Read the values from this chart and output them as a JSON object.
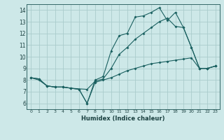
{
  "xlabel": "Humidex (Indice chaleur)",
  "background_color": "#cde8e8",
  "grid_color": "#aacccc",
  "line_color": "#1a6060",
  "xlim": [
    -0.5,
    23.5
  ],
  "ylim": [
    5.5,
    14.5
  ],
  "xticks": [
    0,
    1,
    2,
    3,
    4,
    5,
    6,
    7,
    8,
    9,
    10,
    11,
    12,
    13,
    14,
    15,
    16,
    17,
    18,
    19,
    20,
    21,
    22,
    23
  ],
  "yticks": [
    6,
    7,
    8,
    9,
    10,
    11,
    12,
    13,
    14
  ],
  "line1_x": [
    0,
    1,
    2,
    3,
    4,
    5,
    6,
    7,
    8,
    9,
    10,
    11,
    12,
    13,
    14,
    15,
    16,
    17,
    18,
    19,
    20,
    21,
    22,
    23
  ],
  "line1_y": [
    8.2,
    8.1,
    7.5,
    7.4,
    7.4,
    7.3,
    7.2,
    6.0,
    8.0,
    8.3,
    10.5,
    11.8,
    12.0,
    13.4,
    13.5,
    13.8,
    14.2,
    13.1,
    13.8,
    12.5,
    10.8,
    9.0,
    9.0,
    9.2
  ],
  "line2_x": [
    0,
    1,
    2,
    3,
    4,
    5,
    7,
    8,
    9,
    10,
    11,
    12,
    13,
    14,
    15,
    16,
    17,
    18,
    19,
    20,
    21,
    22,
    23
  ],
  "line2_y": [
    8.2,
    8.1,
    7.5,
    7.4,
    7.4,
    7.3,
    7.2,
    7.9,
    8.1,
    9.0,
    10.2,
    10.8,
    11.5,
    12.0,
    12.5,
    13.0,
    13.3,
    12.6,
    12.5,
    10.8,
    9.0,
    9.0,
    9.2
  ],
  "line3_x": [
    0,
    1,
    2,
    3,
    4,
    5,
    6,
    7,
    8,
    9,
    10,
    11,
    12,
    13,
    14,
    15,
    16,
    17,
    18,
    19,
    20,
    21,
    22,
    23
  ],
  "line3_y": [
    8.2,
    8.0,
    7.5,
    7.4,
    7.4,
    7.3,
    7.2,
    6.0,
    7.8,
    8.0,
    8.2,
    8.5,
    8.8,
    9.0,
    9.2,
    9.4,
    9.5,
    9.6,
    9.7,
    9.8,
    9.9,
    9.0,
    9.0,
    9.2
  ]
}
